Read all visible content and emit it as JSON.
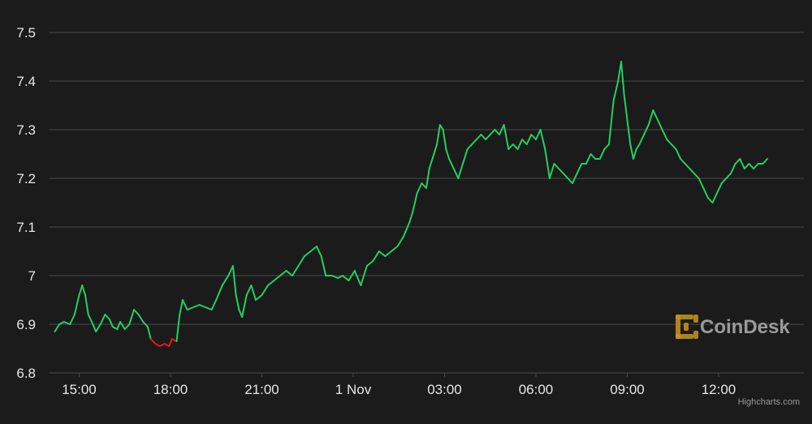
{
  "chart_data": {
    "type": "line",
    "title": "",
    "xlabel": "",
    "ylabel": "",
    "ylim": [
      6.8,
      7.5
    ],
    "yticks": [
      "7.5",
      "7.4",
      "7.3",
      "7.2",
      "7.1",
      "7",
      "6.9",
      "6.8"
    ],
    "xticks": [
      {
        "label": "15:00",
        "x": 1
      },
      {
        "label": "18:00",
        "x": 4
      },
      {
        "label": "21:00",
        "x": 7
      },
      {
        "label": "1 Nov",
        "x": 10
      },
      {
        "label": "03:00",
        "x": 13
      },
      {
        "label": "06:00",
        "x": 16
      },
      {
        "label": "09:00",
        "x": 19
      },
      {
        "label": "12:00",
        "x": 22
      }
    ],
    "xlim": [
      0,
      24.8
    ],
    "up_color": "#23d160",
    "down_color": "#e8161b",
    "grid": true,
    "legend": "none",
    "series": [
      {
        "values": [
          [
            0.2,
            6.885
          ],
          [
            0.35,
            6.9
          ],
          [
            0.5,
            6.905
          ],
          [
            0.7,
            6.9
          ],
          [
            0.85,
            6.92
          ],
          [
            1.0,
            6.96
          ],
          [
            1.1,
            6.98
          ],
          [
            1.2,
            6.96
          ],
          [
            1.3,
            6.92
          ],
          [
            1.45,
            6.9
          ],
          [
            1.55,
            6.885
          ],
          [
            1.7,
            6.9
          ],
          [
            1.85,
            6.92
          ],
          [
            2.0,
            6.91
          ],
          [
            2.1,
            6.895
          ],
          [
            2.25,
            6.89
          ],
          [
            2.35,
            6.905
          ],
          [
            2.5,
            6.89
          ],
          [
            2.65,
            6.9
          ],
          [
            2.8,
            6.93
          ],
          [
            2.95,
            6.92
          ],
          [
            3.1,
            6.905
          ],
          [
            3.25,
            6.895
          ],
          [
            3.35,
            6.87
          ],
          [
            3.5,
            6.86
          ],
          [
            3.65,
            6.855
          ],
          [
            3.8,
            6.86
          ],
          [
            3.95,
            6.855
          ],
          [
            4.05,
            6.87
          ],
          [
            4.2,
            6.865
          ],
          [
            4.3,
            6.92
          ],
          [
            4.4,
            6.95
          ],
          [
            4.55,
            6.93
          ],
          [
            4.75,
            6.935
          ],
          [
            4.95,
            6.94
          ],
          [
            5.15,
            6.935
          ],
          [
            5.35,
            6.93
          ],
          [
            5.5,
            6.95
          ],
          [
            5.7,
            6.98
          ],
          [
            5.9,
            7.0
          ],
          [
            6.05,
            7.02
          ],
          [
            6.15,
            6.96
          ],
          [
            6.25,
            6.93
          ],
          [
            6.35,
            6.915
          ],
          [
            6.5,
            6.96
          ],
          [
            6.65,
            6.98
          ],
          [
            6.8,
            6.95
          ],
          [
            7.0,
            6.96
          ],
          [
            7.2,
            6.98
          ],
          [
            7.4,
            6.99
          ],
          [
            7.6,
            7.0
          ],
          [
            7.8,
            7.01
          ],
          [
            8.0,
            7.0
          ],
          [
            8.2,
            7.02
          ],
          [
            8.4,
            7.04
          ],
          [
            8.6,
            7.05
          ],
          [
            8.8,
            7.06
          ],
          [
            8.95,
            7.04
          ],
          [
            9.1,
            7.0
          ],
          [
            9.3,
            7.0
          ],
          [
            9.5,
            6.995
          ],
          [
            9.65,
            7.0
          ],
          [
            9.85,
            6.99
          ],
          [
            10.05,
            7.01
          ],
          [
            10.25,
            6.98
          ],
          [
            10.45,
            7.02
          ],
          [
            10.65,
            7.03
          ],
          [
            10.85,
            7.05
          ],
          [
            11.05,
            7.04
          ],
          [
            11.25,
            7.05
          ],
          [
            11.45,
            7.06
          ],
          [
            11.65,
            7.08
          ],
          [
            11.85,
            7.11
          ],
          [
            11.95,
            7.13
          ],
          [
            12.1,
            7.17
          ],
          [
            12.25,
            7.19
          ],
          [
            12.4,
            7.18
          ],
          [
            12.5,
            7.22
          ],
          [
            12.6,
            7.24
          ],
          [
            12.75,
            7.27
          ],
          [
            12.85,
            7.31
          ],
          [
            12.95,
            7.3
          ],
          [
            13.05,
            7.26
          ],
          [
            13.15,
            7.24
          ],
          [
            13.3,
            7.22
          ],
          [
            13.45,
            7.2
          ],
          [
            13.6,
            7.23
          ],
          [
            13.75,
            7.26
          ],
          [
            13.9,
            7.27
          ],
          [
            14.05,
            7.28
          ],
          [
            14.2,
            7.29
          ],
          [
            14.35,
            7.28
          ],
          [
            14.5,
            7.29
          ],
          [
            14.65,
            7.3
          ],
          [
            14.8,
            7.29
          ],
          [
            14.95,
            7.31
          ],
          [
            15.1,
            7.26
          ],
          [
            15.25,
            7.27
          ],
          [
            15.4,
            7.26
          ],
          [
            15.55,
            7.28
          ],
          [
            15.7,
            7.27
          ],
          [
            15.85,
            7.29
          ],
          [
            16.0,
            7.28
          ],
          [
            16.15,
            7.3
          ],
          [
            16.3,
            7.26
          ],
          [
            16.45,
            7.2
          ],
          [
            16.6,
            7.23
          ],
          [
            16.75,
            7.22
          ],
          [
            16.9,
            7.21
          ],
          [
            17.05,
            7.2
          ],
          [
            17.2,
            7.19
          ],
          [
            17.35,
            7.21
          ],
          [
            17.5,
            7.23
          ],
          [
            17.65,
            7.23
          ],
          [
            17.8,
            7.25
          ],
          [
            17.95,
            7.24
          ],
          [
            18.1,
            7.24
          ],
          [
            18.25,
            7.26
          ],
          [
            18.4,
            7.27
          ],
          [
            18.55,
            7.36
          ],
          [
            18.7,
            7.4
          ],
          [
            18.8,
            7.44
          ],
          [
            18.9,
            7.37
          ],
          [
            19.0,
            7.32
          ],
          [
            19.1,
            7.27
          ],
          [
            19.2,
            7.24
          ],
          [
            19.3,
            7.26
          ],
          [
            19.4,
            7.27
          ],
          [
            19.55,
            7.29
          ],
          [
            19.7,
            7.31
          ],
          [
            19.85,
            7.34
          ],
          [
            20.0,
            7.32
          ],
          [
            20.15,
            7.3
          ],
          [
            20.3,
            7.28
          ],
          [
            20.45,
            7.27
          ],
          [
            20.6,
            7.26
          ],
          [
            20.75,
            7.24
          ],
          [
            20.9,
            7.23
          ],
          [
            21.05,
            7.22
          ],
          [
            21.2,
            7.21
          ],
          [
            21.35,
            7.2
          ],
          [
            21.5,
            7.18
          ],
          [
            21.65,
            7.16
          ],
          [
            21.8,
            7.15
          ],
          [
            21.95,
            7.17
          ],
          [
            22.1,
            7.19
          ],
          [
            22.25,
            7.2
          ],
          [
            22.4,
            7.21
          ],
          [
            22.55,
            7.23
          ],
          [
            22.7,
            7.24
          ],
          [
            22.85,
            7.22
          ],
          [
            23.0,
            7.23
          ],
          [
            23.15,
            7.22
          ],
          [
            23.3,
            7.23
          ],
          [
            23.45,
            7.23
          ],
          [
            23.6,
            7.24
          ]
        ]
      }
    ]
  },
  "watermark": {
    "brand": "CoinDesk",
    "brand_color": "#c8941e"
  },
  "credit": "Highcharts.com"
}
